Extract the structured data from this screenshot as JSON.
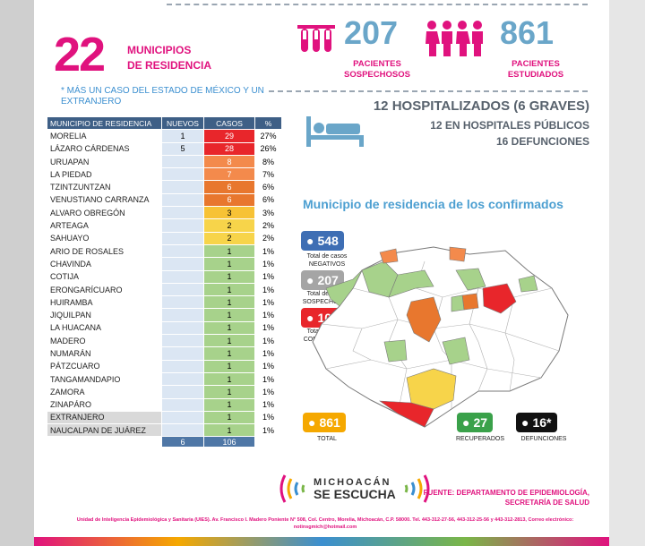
{
  "header": {
    "municipios_count": "22",
    "municipios_label_1": "MUNICIPIOS",
    "municipios_label_2": "DE RESIDENCIA",
    "note": "* MÁS UN CASO DEL ESTADO DE MÉXICO Y UN EXTRANJERO"
  },
  "stats": {
    "sospechosos_num": "207",
    "sospechosos_label_1": "PACIENTES",
    "sospechosos_label_2": "SOSPECHOSOS",
    "estudiados_num": "861",
    "estudiados_label_1": "PACIENTES",
    "estudiados_label_2": "ESTUDIADOS"
  },
  "hospital": {
    "line1": "12 HOSPITALIZADOS (6 GRAVES)",
    "line2": "12 EN HOSPITALES PÚBLICOS",
    "line3": "16 DEFUNCIONES"
  },
  "table": {
    "headers": [
      "MUNICIPIO DE RESIDENCIA",
      "NUEVOS",
      "CASOS",
      "%"
    ],
    "rows": [
      {
        "name": "MORELIA",
        "nuevos": "1",
        "casos": "29",
        "pct": "27%",
        "color": "#e8262b"
      },
      {
        "name": "LÁZARO CÁRDENAS",
        "nuevos": "5",
        "casos": "28",
        "pct": "26%",
        "color": "#e8262b"
      },
      {
        "name": "URUAPAN",
        "nuevos": "",
        "casos": "8",
        "pct": "8%",
        "color": "#f38a4c"
      },
      {
        "name": "LA PIEDAD",
        "nuevos": "",
        "casos": "7",
        "pct": "7%",
        "color": "#f38a4c"
      },
      {
        "name": "TZINTZUNTZAN",
        "nuevos": "",
        "casos": "6",
        "pct": "6%",
        "color": "#e8772e"
      },
      {
        "name": "VENUSTIANO CARRANZA",
        "nuevos": "",
        "casos": "6",
        "pct": "6%",
        "color": "#e8772e"
      },
      {
        "name": "ALVARO OBREGÓN",
        "nuevos": "",
        "casos": "3",
        "pct": "3%",
        "color": "#f7c235"
      },
      {
        "name": "ARTEAGA",
        "nuevos": "",
        "casos": "2",
        "pct": "2%",
        "color": "#f7d44a"
      },
      {
        "name": "SAHUAYO",
        "nuevos": "",
        "casos": "2",
        "pct": "2%",
        "color": "#f7d44a"
      },
      {
        "name": "ARIO DE ROSALES",
        "nuevos": "",
        "casos": "1",
        "pct": "1%",
        "color": "#a7d28b"
      },
      {
        "name": "CHAVINDA",
        "nuevos": "",
        "casos": "1",
        "pct": "1%",
        "color": "#a7d28b"
      },
      {
        "name": "COTIJA",
        "nuevos": "",
        "casos": "1",
        "pct": "1%",
        "color": "#a7d28b"
      },
      {
        "name": "ERONGARÍCUARO",
        "nuevos": "",
        "casos": "1",
        "pct": "1%",
        "color": "#a7d28b"
      },
      {
        "name": "HUIRAMBA",
        "nuevos": "",
        "casos": "1",
        "pct": "1%",
        "color": "#a7d28b"
      },
      {
        "name": "JIQUILPAN",
        "nuevos": "",
        "casos": "1",
        "pct": "1%",
        "color": "#a7d28b"
      },
      {
        "name": "LA HUACANA",
        "nuevos": "",
        "casos": "1",
        "pct": "1%",
        "color": "#a7d28b"
      },
      {
        "name": "MADERO",
        "nuevos": "",
        "casos": "1",
        "pct": "1%",
        "color": "#a7d28b"
      },
      {
        "name": "NUMARÁN",
        "nuevos": "",
        "casos": "1",
        "pct": "1%",
        "color": "#a7d28b"
      },
      {
        "name": "PÁTZCUARO",
        "nuevos": "",
        "casos": "1",
        "pct": "1%",
        "color": "#a7d28b"
      },
      {
        "name": "TANGAMANDAPIO",
        "nuevos": "",
        "casos": "1",
        "pct": "1%",
        "color": "#a7d28b"
      },
      {
        "name": "ZAMORA",
        "nuevos": "",
        "casos": "1",
        "pct": "1%",
        "color": "#a7d28b"
      },
      {
        "name": "ZINAPÁRO",
        "nuevos": "",
        "casos": "1",
        "pct": "1%",
        "color": "#a7d28b"
      },
      {
        "name": "EXTRANJERO",
        "nuevos": "",
        "casos": "1",
        "pct": "1%",
        "color": "#a7d28b"
      },
      {
        "name": "NAUCALPAN DE JUÁREZ",
        "nuevos": "",
        "casos": "1",
        "pct": "1%",
        "color": "#a7d28b"
      }
    ],
    "total_nuevos": "6",
    "total_casos": "106"
  },
  "map": {
    "title": "Municipio de residencia de los confirmados",
    "negativos_num": "548",
    "negativos_label": "Total de casos NEGATIVOS",
    "sospechosos_num": "207",
    "sospechosos_label": "Total de casos SOSPECHOSOS",
    "confirmados_num": "106",
    "confirmados_label": "Total de casos CONFIRMADOS",
    "total_num": "861",
    "total_label": "TOTAL",
    "recuperados_num": "27",
    "recuperados_label": "RECUPERADOS",
    "defunciones_num": "16*",
    "defunciones_label": "DEFUNCIONES"
  },
  "footer": {
    "logo_line1": "MICHOACÁN",
    "logo_line2": "SE ESCUCHA",
    "fuente_1": "FUENTE: DEPARTAMENTO DE EPIDEMIOLOGÍA,",
    "fuente_2": "SECRETARÍA DE SALUD",
    "uies": "Unidad de Inteligencia Epidemiológica y Sanitaria (UIES). Av. Francisco I. Madero Poniente N° 508, Col. Centro, Morelia, Michoacán, C.P. 58000. Tel. 443-312-27-56, 443-312-25-56 y 443-312-2813, Correo electrónico: notinsgmich@hotmail.com"
  },
  "colors": {
    "pink": "#e0127e",
    "blue": "#6aa6c9",
    "negativos": "#3e6eb4",
    "sospechosos": "#a5a5a5",
    "confirmados": "#e8262b",
    "total": "#f5a800",
    "recuperados": "#3aa14a",
    "defunciones": "#111111"
  }
}
